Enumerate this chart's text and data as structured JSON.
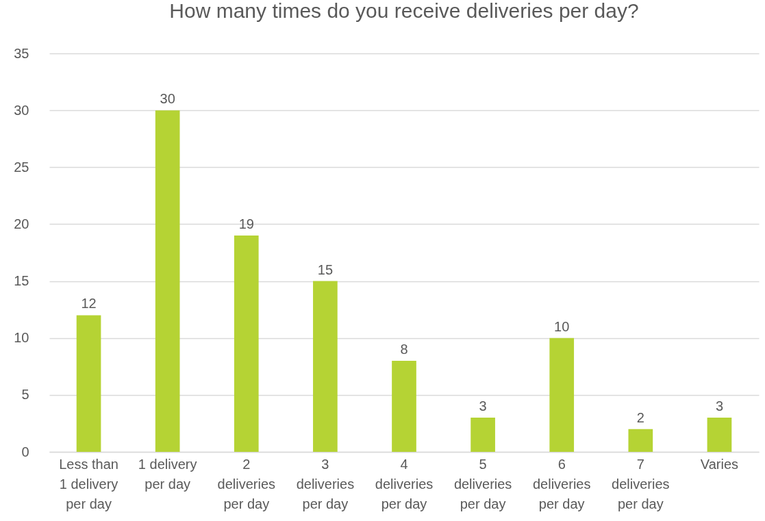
{
  "chart_data": {
    "type": "bar",
    "title": "How many times do you receive deliveries per day?",
    "categories": [
      "Less than 1 delivery per day",
      "1 delivery per day",
      "2 deliveries per day",
      "3 deliveries per day",
      "4 deliveries per day",
      "5 deliveries per day",
      "6 deliveries per day",
      "7 deliveries per day",
      "Varies"
    ],
    "values": [
      12,
      30,
      19,
      15,
      8,
      3,
      10,
      2,
      3
    ],
    "color": "#b5d334",
    "ylim": [
      0,
      35
    ],
    "yticks": [
      0,
      5,
      10,
      15,
      20,
      25,
      30,
      35
    ],
    "grid": "y",
    "data_labels": true
  }
}
